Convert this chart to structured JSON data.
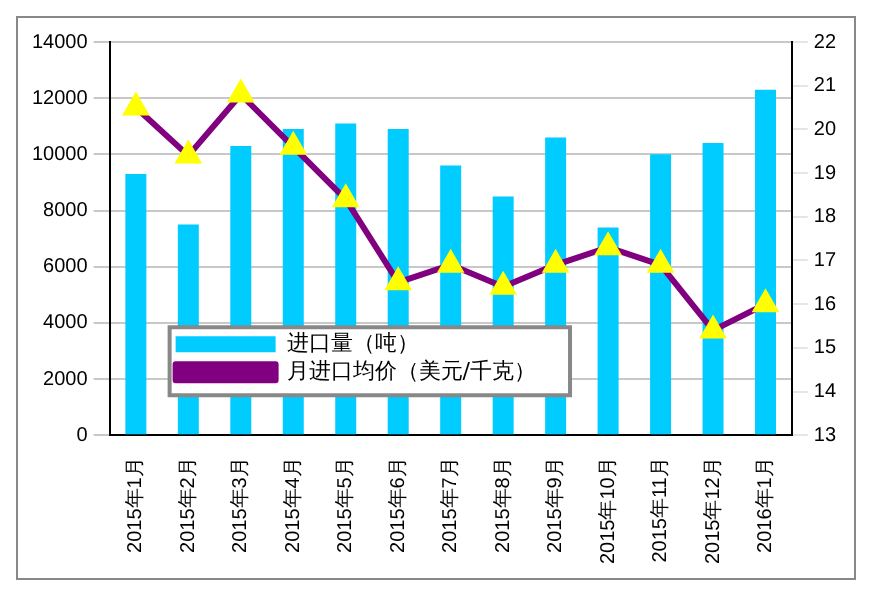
{
  "chart_data": {
    "type": "bar",
    "categories": [
      "2015年1月",
      "2015年2月",
      "2015年3月",
      "2015年4月",
      "2015年5月",
      "2015年6月",
      "2015年7月",
      "2015年8月",
      "2015年9月",
      "2015年10月",
      "2015年11月",
      "2015年12月",
      "2016年1月"
    ],
    "series": [
      {
        "name": "进口量（吨）",
        "color": "#00ccff",
        "values": [
          9300,
          7500,
          10300,
          10900,
          11100,
          10900,
          9600,
          8500,
          10600,
          7400,
          10000,
          10400,
          12300
        ]
      },
      {
        "name": "月进口均价（美元/千克）",
        "type": "line",
        "axis": "y2",
        "color": "#800080",
        "marker": "triangle",
        "values": [
          20.5,
          19.4,
          20.8,
          19.6,
          18.4,
          16.5,
          16.9,
          16.4,
          16.9,
          17.3,
          16.9,
          15.4,
          16.0
        ]
      }
    ],
    "ylim": [
      0,
      14000
    ],
    "yticks": [
      0,
      2000,
      4000,
      6000,
      8000,
      10000,
      12000,
      14000
    ],
    "y2lim": [
      13,
      22
    ],
    "y2ticks": [
      13,
      14,
      15,
      16,
      17,
      18,
      19,
      20,
      21,
      22
    ],
    "grid": "y",
    "legend": "bottom left"
  }
}
